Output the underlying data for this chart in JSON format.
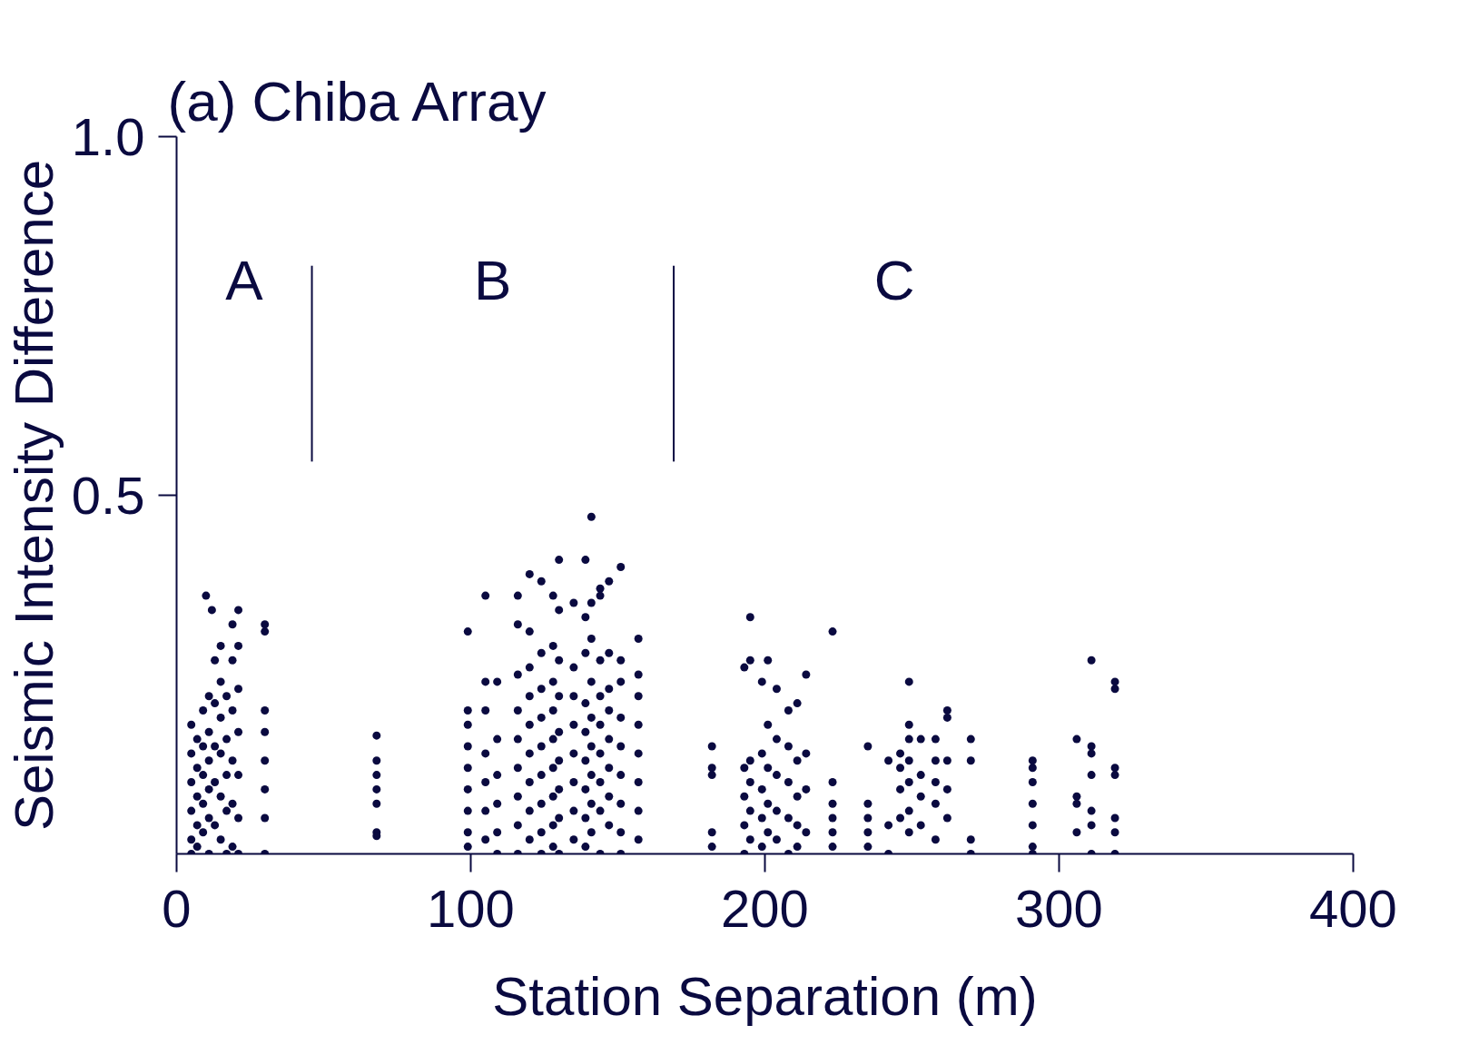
{
  "chart_data": {
    "type": "scatter",
    "title": "(a)  Chiba Array",
    "xlabel": "Station Separation (m)",
    "ylabel": "Seismic Intensity Difference",
    "xlim": [
      0,
      400
    ],
    "ylim": [
      0,
      1.0
    ],
    "xticks": [
      0,
      100,
      200,
      300,
      400
    ],
    "yticks": [
      {
        "value": 0.5,
        "label": "0.5"
      },
      {
        "value": 1.0,
        "label": "1.0"
      }
    ],
    "grid": false,
    "marker": "circle",
    "ref_lines": [
      {
        "axis": "x",
        "value": 46,
        "label": null
      },
      {
        "axis": "x",
        "value": 169,
        "label": null
      }
    ],
    "annotations": [
      "A",
      "B",
      "C"
    ],
    "series": [
      {
        "color": "#0a0a40",
        "x": [
          5,
          5,
          5,
          5,
          5,
          5,
          7,
          7,
          7,
          7,
          7,
          9,
          9,
          9,
          9,
          9,
          10,
          11,
          11,
          11,
          11,
          11,
          11,
          12,
          13,
          13,
          13,
          13,
          13,
          15,
          15,
          15,
          15,
          15,
          15,
          17,
          17,
          17,
          17,
          17,
          19,
          19,
          19,
          19,
          19,
          19,
          21,
          21,
          21,
          21,
          21,
          21,
          21,
          30,
          30,
          30,
          30,
          30,
          30,
          30,
          30,
          68,
          68,
          68,
          68,
          68,
          68,
          68,
          99,
          99,
          99,
          99,
          99,
          99,
          99,
          99,
          99,
          105,
          105,
          105,
          105,
          105,
          105,
          105,
          109,
          109,
          109,
          109,
          109,
          109,
          116,
          116,
          116,
          116,
          116,
          116,
          116,
          116,
          116,
          120,
          120,
          120,
          120,
          120,
          120,
          120,
          120,
          120,
          124,
          124,
          124,
          124,
          124,
          124,
          124,
          124,
          124,
          128,
          128,
          128,
          128,
          128,
          128,
          128,
          128,
          128,
          130,
          130,
          130,
          130,
          130,
          130,
          130,
          130,
          130,
          135,
          135,
          135,
          135,
          135,
          135,
          135,
          135,
          139,
          139,
          139,
          139,
          139,
          139,
          139,
          139,
          139,
          141,
          141,
          141,
          141,
          141,
          141,
          141,
          141,
          141,
          144,
          144,
          144,
          144,
          144,
          144,
          144,
          144,
          144,
          147,
          147,
          147,
          147,
          147,
          147,
          147,
          147,
          151,
          151,
          151,
          151,
          151,
          151,
          151,
          151,
          151,
          157,
          157,
          157,
          157,
          157,
          157,
          157,
          157,
          182,
          182,
          182,
          182,
          182,
          193,
          193,
          193,
          193,
          193,
          195,
          195,
          195,
          195,
          195,
          195,
          199,
          199,
          199,
          199,
          199,
          201,
          201,
          201,
          201,
          201,
          204,
          204,
          204,
          204,
          204,
          208,
          208,
          208,
          208,
          208,
          211,
          211,
          211,
          211,
          211,
          214,
          214,
          214,
          214,
          223,
          223,
          223,
          223,
          223,
          223,
          235,
          235,
          235,
          235,
          235,
          242,
          242,
          242,
          246,
          246,
          246,
          246,
          249,
          249,
          249,
          249,
          249,
          249,
          249,
          253,
          253,
          253,
          253,
          258,
          258,
          258,
          258,
          258,
          262,
          262,
          262,
          262,
          262,
          270,
          270,
          270,
          270,
          291,
          291,
          291,
          291,
          291,
          291,
          291,
          306,
          306,
          306,
          306,
          311,
          311,
          311,
          311,
          311,
          311,
          311,
          319,
          319,
          319,
          319,
          319,
          319,
          319
        ],
        "values": [
          0.18,
          0.14,
          0.1,
          0.06,
          0.02,
          0,
          0.16,
          0.12,
          0.08,
          0.04,
          0.01,
          0.2,
          0.15,
          0.11,
          0.07,
          0.03,
          0.36,
          0.22,
          0.17,
          0.13,
          0.09,
          0.05,
          0,
          0.34,
          0.27,
          0.21,
          0.15,
          0.1,
          0.04,
          0.29,
          0.24,
          0.19,
          0.14,
          0.08,
          0.02,
          0.22,
          0.16,
          0.11,
          0.06,
          0,
          0.32,
          0.27,
          0.2,
          0.13,
          0.07,
          0.01,
          0.34,
          0.29,
          0.23,
          0.17,
          0.11,
          0.05,
          0,
          0.32,
          0.31,
          0.2,
          0.17,
          0.13,
          0.09,
          0.05,
          0,
          0.165,
          0.13,
          0.11,
          0.09,
          0.07,
          0.03,
          0.025,
          0.31,
          0.2,
          0.18,
          0.15,
          0.12,
          0.09,
          0.06,
          0.03,
          0.01,
          0.36,
          0.24,
          0.2,
          0.14,
          0.1,
          0.06,
          0.02,
          0.24,
          0.16,
          0.11,
          0.07,
          0.03,
          0,
          0.36,
          0.32,
          0.25,
          0.2,
          0.16,
          0.12,
          0.08,
          0.04,
          0,
          0.39,
          0.31,
          0.26,
          0.22,
          0.18,
          0.14,
          0.1,
          0.06,
          0.02,
          0.38,
          0.28,
          0.23,
          0.19,
          0.15,
          0.11,
          0.07,
          0.03,
          0,
          0.36,
          0.29,
          0.24,
          0.2,
          0.16,
          0.12,
          0.08,
          0.04,
          0.01,
          0.41,
          0.34,
          0.27,
          0.22,
          0.17,
          0.13,
          0.09,
          0.05,
          0,
          0.35,
          0.26,
          0.22,
          0.18,
          0.14,
          0.1,
          0.06,
          0.02,
          0.41,
          0.33,
          0.28,
          0.21,
          0.17,
          0.13,
          0.09,
          0.05,
          0.01,
          0.47,
          0.35,
          0.3,
          0.24,
          0.19,
          0.15,
          0.11,
          0.07,
          0.03,
          0.37,
          0.36,
          0.27,
          0.22,
          0.18,
          0.14,
          0.1,
          0.06,
          0,
          0.38,
          0.28,
          0.23,
          0.2,
          0.16,
          0.12,
          0.08,
          0.04,
          0.4,
          0.27,
          0.24,
          0.19,
          0.15,
          0.11,
          0.07,
          0.03,
          0,
          0.3,
          0.25,
          0.22,
          0.18,
          0.14,
          0.1,
          0.06,
          0.02,
          0.15,
          0.12,
          0.11,
          0.03,
          0.01,
          0.26,
          0.12,
          0.08,
          0.04,
          0,
          0.33,
          0.27,
          0.13,
          0.1,
          0.06,
          0.02,
          0.24,
          0.14,
          0.09,
          0.05,
          0.01,
          0.27,
          0.18,
          0.12,
          0.07,
          0.03,
          0.23,
          0.16,
          0.11,
          0.06,
          0.02,
          0.2,
          0.15,
          0.1,
          0.05,
          0,
          0.21,
          0.13,
          0.08,
          0.04,
          0.01,
          0.25,
          0.14,
          0.09,
          0.03,
          0.31,
          0.1,
          0.07,
          0.05,
          0.03,
          0.01,
          0.15,
          0.07,
          0.05,
          0.03,
          0.01,
          0.13,
          0.04,
          0,
          0.14,
          0.12,
          0.09,
          0.05,
          0.24,
          0.18,
          0.16,
          0.13,
          0.1,
          0.06,
          0.03,
          0.16,
          0.11,
          0.08,
          0.04,
          0.16,
          0.13,
          0.1,
          0.07,
          0.02,
          0.2,
          0.19,
          0.13,
          0.09,
          0.05,
          0.16,
          0.13,
          0.02,
          0,
          0.13,
          0.12,
          0.1,
          0.07,
          0.04,
          0.01,
          0,
          0.16,
          0.08,
          0.07,
          0.03,
          0.27,
          0.15,
          0.14,
          0.11,
          0.06,
          0.04,
          0,
          0.24,
          0.23,
          0.12,
          0.11,
          0.05,
          0.03,
          0
        ]
      }
    ]
  }
}
